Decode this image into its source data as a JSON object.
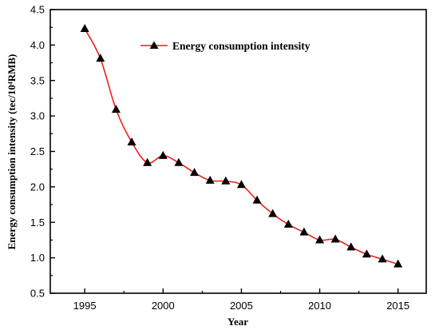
{
  "chart_data": {
    "type": "line",
    "xlabel": "Year",
    "ylabel": "Energy consumption intensity (tec/10⁴RMB)",
    "xlim": [
      1992.8,
      2016.8
    ],
    "ylim": [
      0.5,
      4.5
    ],
    "x_ticks": [
      1995,
      2000,
      2005,
      2010,
      2015
    ],
    "y_ticks": [
      0.5,
      1.0,
      1.5,
      2.0,
      2.5,
      3.0,
      3.5,
      4.0,
      4.5
    ],
    "x_tick_labels": [
      "1995",
      "2000",
      "2005",
      "2010",
      "2015"
    ],
    "y_tick_labels": [
      "0.5",
      "1.0",
      "1.5",
      "2.0",
      "2.5",
      "3.0",
      "3.5",
      "4.0",
      "4.5"
    ],
    "legend_position": "top-center",
    "grid": false,
    "series": [
      {
        "name": "Energy consumption intensity",
        "color": "#e8201c",
        "marker": "triangle",
        "marker_color": "#000000",
        "x": [
          1995,
          1996,
          1997,
          1998,
          1999,
          2000,
          2001,
          2002,
          2003,
          2004,
          2005,
          2006,
          2007,
          2008,
          2009,
          2010,
          2011,
          2012,
          2013,
          2014,
          2015
        ],
        "y": [
          4.23,
          3.81,
          3.09,
          2.63,
          2.34,
          2.44,
          2.34,
          2.2,
          2.09,
          2.08,
          2.03,
          1.81,
          1.62,
          1.47,
          1.36,
          1.25,
          1.26,
          1.15,
          1.05,
          0.98,
          0.91
        ]
      }
    ]
  }
}
